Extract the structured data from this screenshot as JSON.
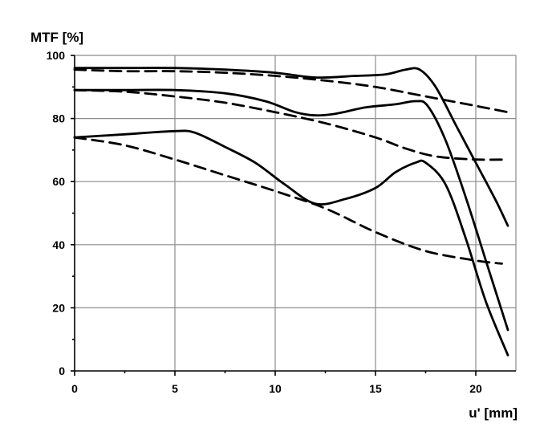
{
  "chart_data": {
    "type": "line",
    "title": "",
    "ylabel": "MTF [%]",
    "xlabel": "u' [mm]",
    "xlim": [
      0,
      22
    ],
    "ylim": [
      0,
      100
    ],
    "xticks": [
      0,
      5,
      10,
      15,
      20
    ],
    "yticks": [
      0,
      20,
      40,
      60,
      80,
      100
    ],
    "grid": true,
    "series": [
      {
        "style": "solid",
        "color": "#000000",
        "x": [
          0,
          2.5,
          5,
          7.5,
          10,
          12,
          14,
          15.5,
          16.5,
          17.2,
          18,
          19,
          20,
          21,
          21.6
        ],
        "y": [
          96,
          96,
          96,
          95.5,
          94.5,
          93,
          93.5,
          94,
          95.5,
          95.5,
          90,
          78,
          66,
          54,
          46
        ]
      },
      {
        "style": "dashed",
        "color": "#000000",
        "x": [
          0,
          2.5,
          5,
          7.5,
          10,
          12.5,
          15,
          17.5,
          20,
          21.6
        ],
        "y": [
          95.5,
          95,
          95,
          94.5,
          93.5,
          92,
          90,
          87,
          84,
          82
        ]
      },
      {
        "style": "solid",
        "color": "#000000",
        "x": [
          0,
          2.5,
          5,
          7.5,
          9.5,
          11,
          12,
          13,
          14.5,
          16,
          17,
          17.6,
          18.5,
          19.5,
          20.5,
          21.6
        ],
        "y": [
          89,
          89,
          89,
          88,
          85.5,
          82,
          81,
          81.5,
          83.5,
          84.5,
          85.5,
          84,
          73,
          55,
          35,
          13
        ]
      },
      {
        "style": "dashed",
        "color": "#000000",
        "x": [
          0,
          2.5,
          5,
          7.5,
          10,
          12.5,
          15,
          16.5,
          18,
          20,
          21.6
        ],
        "y": [
          89,
          88.5,
          87,
          85,
          82,
          78.5,
          74,
          70.5,
          68,
          67,
          67
        ]
      },
      {
        "style": "solid",
        "color": "#000000",
        "x": [
          0,
          2.5,
          5,
          6,
          7.5,
          9,
          10.5,
          12,
          13.5,
          15,
          16,
          17,
          17.5,
          18.5,
          19.5,
          20.5,
          21.6
        ],
        "y": [
          74,
          75,
          76,
          75.5,
          71,
          66,
          59,
          53,
          54.5,
          58,
          63,
          66,
          66,
          59,
          42,
          22,
          5
        ]
      },
      {
        "style": "dashed",
        "color": "#000000",
        "x": [
          0,
          2.5,
          5,
          7.5,
          10,
          12.5,
          15,
          17.5,
          20,
          21.3
        ],
        "y": [
          74,
          71.5,
          67,
          62,
          57,
          51.5,
          44,
          38,
          35,
          34
        ]
      }
    ]
  }
}
